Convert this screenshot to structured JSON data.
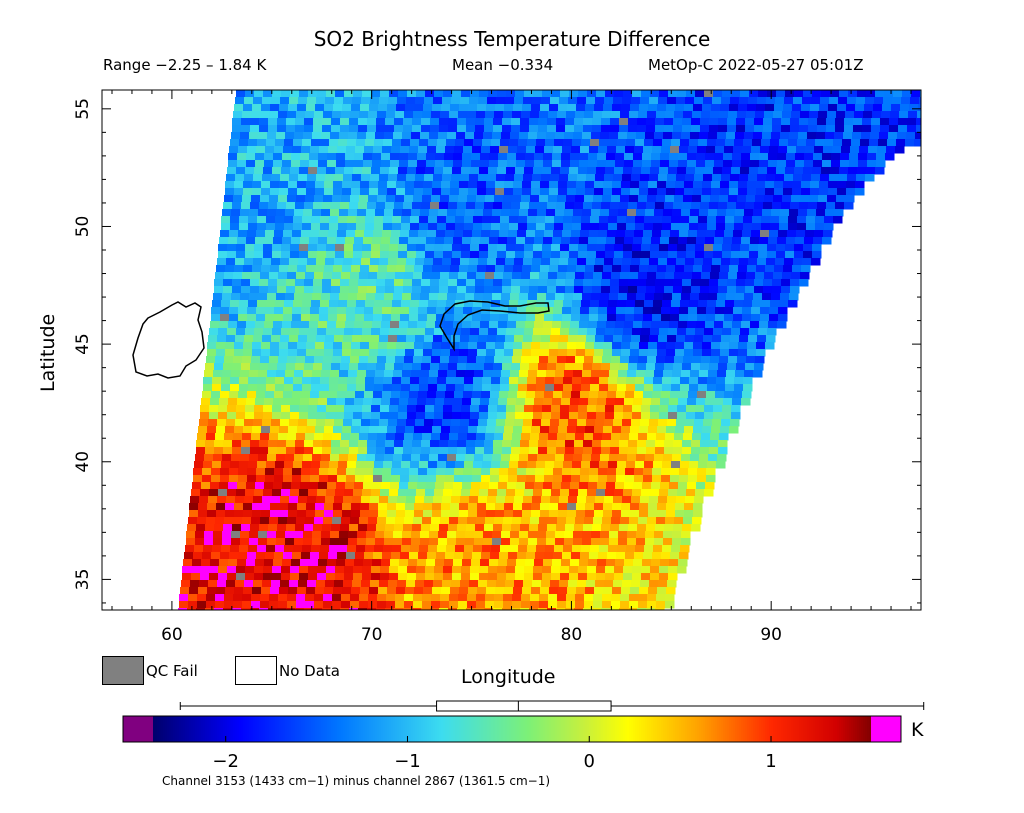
{
  "header": {
    "title": "SO2 Brightness Temperature Difference",
    "range": "Range −2.25 – 1.84 K",
    "mean": "Mean −0.334",
    "satellite": "MetOp-C 2022-05-27 05:01Z"
  },
  "legend": {
    "qc_fail": "QC Fail",
    "no_data": "No Data",
    "qc_fail_color": "#808080",
    "no_data_color": "#ffffff"
  },
  "colorbar": {
    "unit": "K",
    "ticks": [
      "−2",
      "−1",
      "0",
      "1"
    ],
    "underflow_color": "#800080",
    "overflow_color": "#ff00ff",
    "boxplot": {
      "min": -2.25,
      "q1": -0.84,
      "median": -0.39,
      "q3": 0.12,
      "max": 1.84
    }
  },
  "footnote": "Channel 3153 (1433 cm−1) minus channel 2867 (1361.5 cm−1)",
  "chart_data": {
    "type": "heatmap",
    "title": "SO2 Brightness Temperature Difference",
    "xlabel": "Longitude",
    "ylabel": "Latitude",
    "xlim": [
      56.5,
      97.5
    ],
    "ylim": [
      33.7,
      55.8
    ],
    "xticks": [
      60,
      70,
      80,
      90
    ],
    "yticks": [
      35,
      40,
      45,
      50,
      55
    ],
    "colorbar_range": [
      -2.4,
      1.55
    ],
    "grid": false,
    "coastline": "Aral Sea region / Lake Balkhash outlines",
    "regions": [
      {
        "name": "southwest warm band",
        "lon": 66,
        "lat": 36,
        "value": 1.3
      },
      {
        "name": "south central warm",
        "lon": 75,
        "lat": 36,
        "value": 0.6
      },
      {
        "name": "east-central warm patch",
        "lon": 80,
        "lat": 42.5,
        "value": 0.9
      },
      {
        "name": "central cold trough",
        "lon": 73.5,
        "lat": 43,
        "value": -1.6
      },
      {
        "name": "north-central cold patch",
        "lon": 74.5,
        "lat": 51,
        "value": -1.5
      },
      {
        "name": "northeast cold band",
        "lon": 83,
        "lat": 47,
        "value": -1.8
      },
      {
        "name": "far northeast cold",
        "lon": 92,
        "lat": 53,
        "value": -1.7
      },
      {
        "name": "northwest cool",
        "lon": 64,
        "lat": 52,
        "value": -1.1
      },
      {
        "name": "background",
        "lon": 70,
        "lat": 47,
        "value": -0.6
      }
    ]
  }
}
